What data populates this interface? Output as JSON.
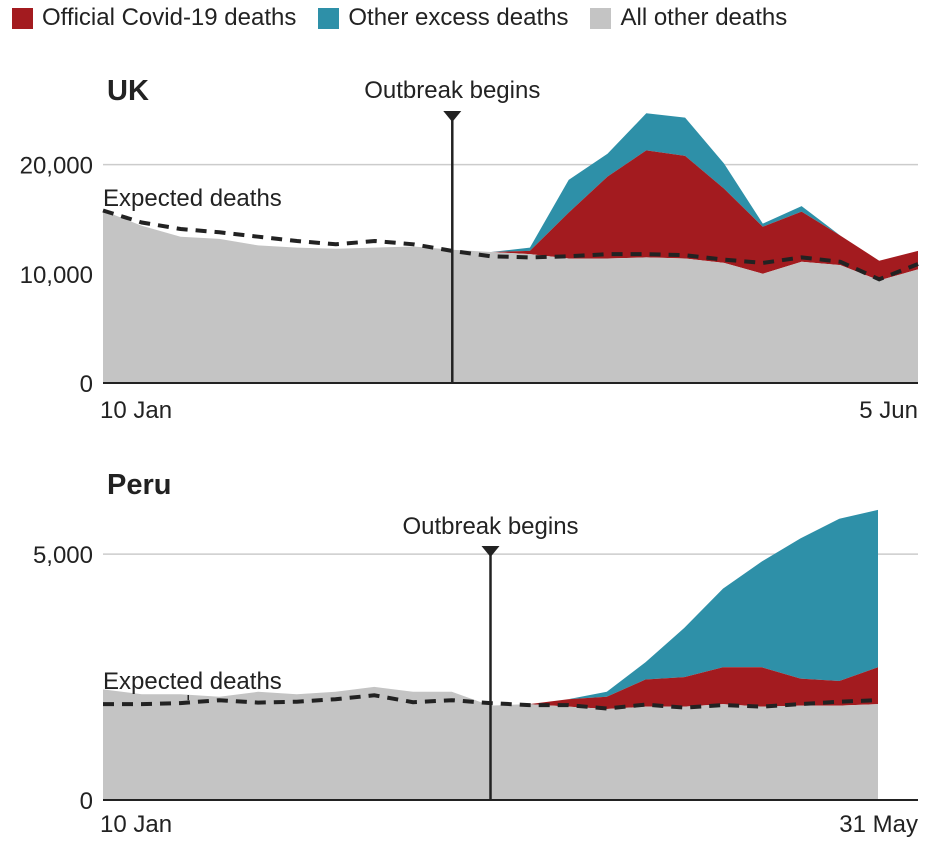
{
  "legend": {
    "items": [
      {
        "label": "Official Covid-19 deaths",
        "color": "#a31b1f"
      },
      {
        "label": "Other excess deaths",
        "color": "#2e90a8"
      },
      {
        "label": "All other deaths",
        "color": "#c4c4c4"
      }
    ]
  },
  "colors": {
    "covid": "#a31b1f",
    "excess": "#2e90a8",
    "other": "#c4c4c4",
    "grid": "#cccccc",
    "axis": "#222222",
    "expected": "#222222"
  },
  "chart_data": [
    {
      "type": "area",
      "title": "UK",
      "xlabel": "",
      "ylabel": "",
      "x_start_label": "10 Jan",
      "x_end_label": "5 Jun",
      "ylim": [
        0,
        25000
      ],
      "y_ticks": [
        0,
        10000,
        20000
      ],
      "y_tick_labels": [
        "0",
        "10,000",
        "20,000"
      ],
      "grid": true,
      "expected_label": "Expected deaths",
      "outbreak_label": "Outbreak begins",
      "outbreak_week": 9,
      "weeks": 22,
      "series": [
        {
          "name": "All other deaths",
          "values": [
            15800,
            14400,
            13400,
            13200,
            12600,
            12400,
            12300,
            12400,
            12500,
            12200,
            12000,
            11800,
            11400,
            11400,
            11500,
            11400,
            11000,
            10000,
            11100,
            10800,
            9400,
            10400
          ]
        },
        {
          "name": "Official Covid-19 deaths",
          "values": [
            0,
            0,
            0,
            0,
            0,
            0,
            0,
            0,
            0,
            0,
            0,
            300,
            4200,
            7500,
            9800,
            9400,
            6800,
            4300,
            4600,
            2700,
            1800,
            1700
          ]
        },
        {
          "name": "Other excess deaths",
          "values": [
            0,
            0,
            0,
            0,
            0,
            0,
            0,
            0,
            0,
            0,
            0,
            300,
            3000,
            2100,
            3400,
            3500,
            2300,
            300,
            500,
            0,
            0,
            0
          ]
        }
      ],
      "expected": [
        15800,
        14700,
        14100,
        13800,
        13400,
        13000,
        12700,
        13000,
        12700,
        12100,
        11600,
        11500,
        11600,
        11800,
        11800,
        11700,
        11300,
        11000,
        11500,
        11100,
        9500,
        10900
      ]
    },
    {
      "type": "area",
      "title": "Peru",
      "xlabel": "",
      "ylabel": "",
      "x_start_label": "10 Jan",
      "x_end_label": "31 May",
      "ylim": [
        0,
        6000
      ],
      "y_ticks": [
        0,
        5000
      ],
      "y_tick_labels": [
        "0",
        "5,000"
      ],
      "grid": true,
      "expected_label": "Expected deaths",
      "outbreak_label": "Outbreak begins",
      "outbreak_week": 10,
      "weeks": 21,
      "series": [
        {
          "name": "All other deaths",
          "values": [
            2250,
            2150,
            2150,
            2100,
            2200,
            2150,
            2200,
            2300,
            2200,
            2200,
            1920,
            1950,
            1900,
            1850,
            1900,
            1900,
            1950,
            1900,
            1920,
            1920,
            1950
          ]
        },
        {
          "name": "Official Covid-19 deaths",
          "values": [
            0,
            0,
            0,
            0,
            0,
            0,
            0,
            0,
            0,
            0,
            0,
            0,
            150,
            250,
            550,
            600,
            750,
            800,
            550,
            500,
            750
          ]
        },
        {
          "name": "Other excess deaths",
          "values": [
            0,
            0,
            0,
            0,
            0,
            0,
            0,
            0,
            0,
            0,
            0,
            0,
            0,
            100,
            350,
            1000,
            1600,
            2150,
            2850,
            3300,
            3200
          ]
        }
      ],
      "expected": [
        1950,
        1950,
        1970,
        2030,
        1980,
        2000,
        2050,
        2130,
        1990,
        2030,
        1970,
        1930,
        1930,
        1860,
        1940,
        1880,
        1930,
        1900,
        1950,
        2000,
        2030
      ]
    }
  ]
}
